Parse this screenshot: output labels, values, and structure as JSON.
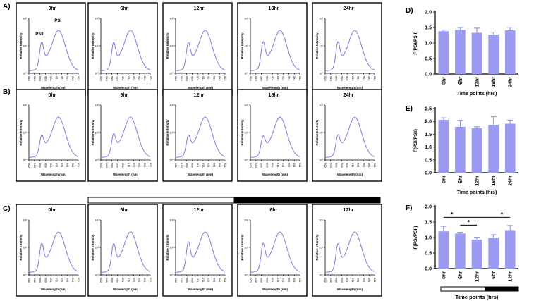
{
  "colors": {
    "line": "#7b7bf0",
    "bar": "#9a9af2",
    "frame": "#000000",
    "black_bar": "#000000"
  },
  "panel_labels": {
    "A": "A)",
    "B": "B)",
    "C": "C)",
    "D": "D)",
    "E": "E)",
    "F": "F)"
  },
  "spectra_axes": {
    "xlabel": "Wavelength (nm)",
    "ylabel": "Relative Intensity",
    "xticks": [
      "660",
      "670",
      "680",
      "690",
      "700",
      "710",
      "720",
      "730",
      "740",
      "750"
    ],
    "yticks": [
      "10⁰",
      "10¹",
      "10²"
    ]
  },
  "peak_annotations": {
    "psii": "PSII",
    "psi": "PSI"
  },
  "timeline_bar": {
    "light_fraction": 0.5
  },
  "chart_data": [
    {
      "type": "line",
      "panel": "A",
      "titles": [
        "0hr",
        "6hr",
        "12hr",
        "18hr",
        "24hr"
      ],
      "x": [
        660,
        750
      ],
      "psii_to_psi_ratio": [
        0.79,
        0.78,
        0.78,
        0.8,
        0.8
      ]
    },
    {
      "type": "line",
      "panel": "B",
      "titles": [
        "0hr",
        "6hr",
        "12hr",
        "18hr",
        "24hr"
      ],
      "x": [
        660,
        750
      ],
      "psii_to_psi_ratio": [
        0.62,
        0.66,
        0.62,
        0.6,
        0.63
      ]
    },
    {
      "type": "line",
      "panel": "C",
      "titles": [
        "0hr",
        "6hr",
        "12hr",
        "6hr",
        "12hr"
      ],
      "x": [
        660,
        750
      ],
      "psii_to_psi_ratio": [
        0.8,
        0.79,
        0.84,
        0.8,
        0.79
      ]
    },
    {
      "type": "bar",
      "panel": "D",
      "categories": [
        "0hr",
        "6hr",
        "12hr",
        "18hr",
        "24hr"
      ],
      "values": [
        1.38,
        1.42,
        1.33,
        1.27,
        1.41
      ],
      "errors": [
        0.04,
        0.08,
        0.15,
        0.08,
        0.1
      ],
      "ylabel": "F(PSI/PSII)",
      "xlabel": "Time points (hrs)",
      "ylim": [
        0,
        2.0
      ],
      "yticks": [
        "0.0",
        "0.5",
        "1.0",
        "1.5",
        "2.0"
      ]
    },
    {
      "type": "bar",
      "panel": "E",
      "categories": [
        "0hr",
        "6hr",
        "12hr",
        "18hr",
        "24hr"
      ],
      "values": [
        2.06,
        1.79,
        1.73,
        1.86,
        1.91
      ],
      "errors": [
        0.08,
        0.25,
        0.06,
        0.32,
        0.14
      ],
      "ylabel": "F(PSI/PSII)",
      "xlabel": "Time points (hrs)",
      "ylim": [
        0,
        2.5
      ],
      "yticks": [
        "0.0",
        "0.5",
        "1.0",
        "1.5",
        "2.0",
        "2.5"
      ]
    },
    {
      "type": "bar",
      "panel": "F",
      "categories": [
        "0hr",
        "6hr",
        "12hr",
        "6hr",
        "12hr"
      ],
      "values": [
        1.2,
        1.13,
        0.93,
        0.99,
        1.24
      ],
      "errors": [
        0.16,
        0.04,
        0.08,
        0.1,
        0.15
      ],
      "ylabel": "F(PSI/PSII)",
      "xlabel": "Time points (hrs)",
      "ylim": [
        0,
        2.0
      ],
      "yticks": [
        "0.0",
        "0.5",
        "1.0",
        "1.5",
        "2.0"
      ],
      "significance": [
        {
          "from": 0,
          "to": 4,
          "label": "*"
        },
        {
          "from": 1,
          "to": 2,
          "label": "*"
        }
      ]
    }
  ]
}
